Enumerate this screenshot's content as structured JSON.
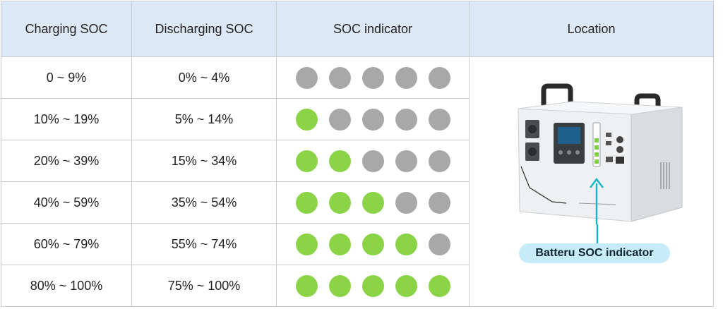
{
  "headers": {
    "charging": "Charging SOC",
    "discharging": "Discharging SOC",
    "indicator": "SOC indicator",
    "location": "Location"
  },
  "rows": [
    {
      "charging": "0 ~ 9%",
      "discharging": "0% ~ 4%",
      "lit": 0
    },
    {
      "charging": "10% ~ 19%",
      "discharging": "5% ~ 14%",
      "lit": 1
    },
    {
      "charging": "20% ~ 39%",
      "discharging": "15% ~ 34%",
      "lit": 2
    },
    {
      "charging": "40% ~ 59%",
      "discharging": "35% ~ 54%",
      "lit": 3
    },
    {
      "charging": "60% ~ 79%",
      "discharging": "55% ~ 74%",
      "lit": 4
    },
    {
      "charging": "80% ~ 100%",
      "discharging": "75% ~ 100%",
      "lit": 5
    }
  ],
  "indicator_total": 5,
  "colors": {
    "lit": "#8bd448",
    "unlit": "#a8a8a8",
    "header_bg": "#dce8f5",
    "arrow": "#17b4c8"
  },
  "callout_label": "Batteru SOC indicator"
}
